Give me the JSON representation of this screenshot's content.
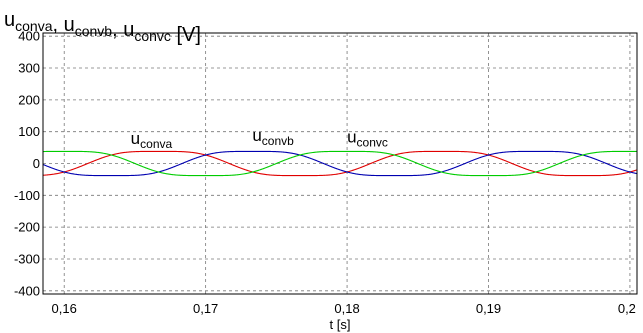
{
  "chart_data": {
    "type": "line",
    "title": {
      "parts": [
        {
          "base": "u",
          "sub": "conva"
        },
        {
          "sep": ", "
        },
        {
          "base": "u",
          "sub": "convb"
        },
        {
          "sep": ", "
        },
        {
          "base": "u",
          "sub": "convc"
        },
        {
          "sep": " [V]"
        }
      ]
    },
    "xlabel": "t [s]",
    "ylabel": "",
    "xlim": [
      0.1585,
      0.2005
    ],
    "ylim": [
      -410,
      410
    ],
    "x_ticks": [
      0.16,
      0.17,
      0.18,
      0.19,
      0.2
    ],
    "x_tick_labels": [
      "0,16",
      "0,17",
      "0,18",
      "0,19",
      "0,2"
    ],
    "y_ticks": [
      400,
      300,
      200,
      100,
      0,
      -100,
      -200,
      -300,
      -400
    ],
    "y_tick_labels": [
      "400",
      "300",
      "200",
      "100",
      "0",
      "-100",
      "-200",
      "-300",
      "-400"
    ],
    "grid": "dashed",
    "series": [
      {
        "name": "u_conva",
        "label": {
          "base": "u",
          "sub": "conva"
        },
        "color": "#e00000",
        "amplitude": 40,
        "frequency_hz": 50,
        "phase_deg": -30,
        "waveform": "trapezoidal-sinusoid",
        "label_at": [
          0.1647,
          62
        ]
      },
      {
        "name": "u_convb",
        "label": {
          "base": "u",
          "sub": "convb"
        },
        "color": "#0000b0",
        "amplitude": 40,
        "frequency_hz": 50,
        "phase_deg": -150,
        "waveform": "trapezoidal-sinusoid",
        "label_at": [
          0.1733,
          70
        ]
      },
      {
        "name": "u_convc",
        "label": {
          "base": "u",
          "sub": "convc"
        },
        "color": "#00cc00",
        "amplitude": 40,
        "frequency_hz": 50,
        "phase_deg": 90,
        "waveform": "trapezoidal-sinusoid",
        "label_at": [
          0.18,
          66
        ]
      }
    ]
  }
}
